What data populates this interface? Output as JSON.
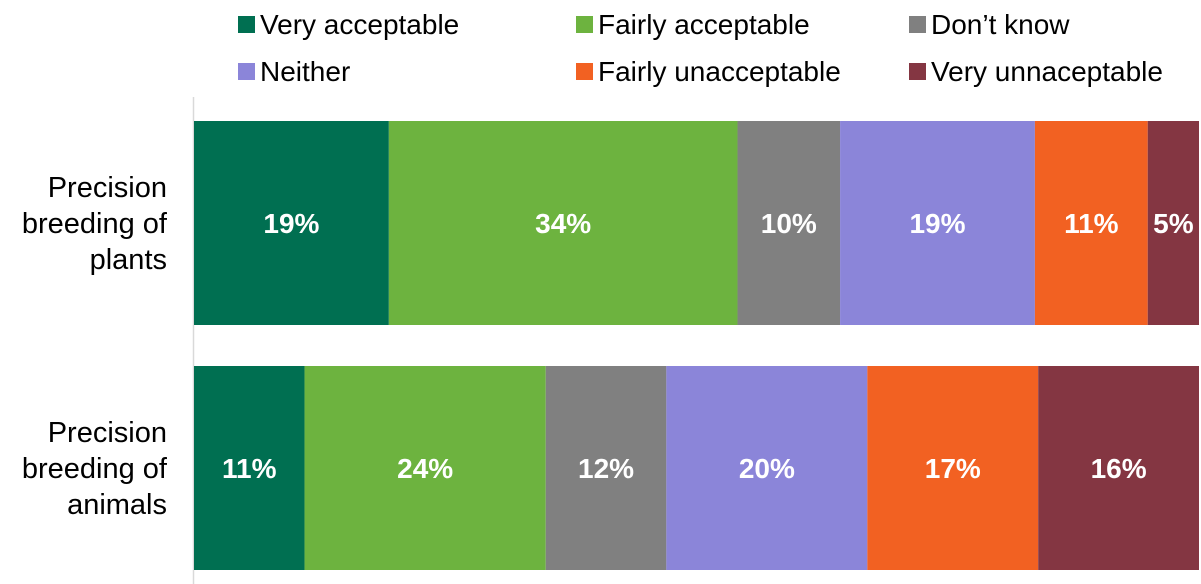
{
  "chart_data": {
    "type": "bar",
    "orientation": "horizontal",
    "stacked": true,
    "percent_stacked": true,
    "categories": [
      [
        "Precision",
        "breeding of",
        "plants"
      ],
      [
        "Precision",
        "breeding of",
        "animals"
      ]
    ],
    "series": [
      {
        "name": "Very acceptable",
        "color": "#006f51",
        "values": [
          19,
          11
        ]
      },
      {
        "name": "Fairly acceptable",
        "color": "#6db33f",
        "values": [
          34,
          24
        ]
      },
      {
        "name": "Don’t know",
        "color": "#808080",
        "values": [
          10,
          12
        ]
      },
      {
        "name": "Neither",
        "color": "#8b85d9",
        "values": [
          19,
          20
        ]
      },
      {
        "name": "Fairly unacceptable",
        "color": "#f26122",
        "values": [
          11,
          17
        ]
      },
      {
        "name": "Very unnaceptable",
        "color": "#843642",
        "values": [
          5,
          16
        ]
      }
    ],
    "value_suffix": "%",
    "legend": {
      "placement": "top",
      "order": [
        0,
        1,
        2,
        3,
        4,
        5
      ]
    },
    "grid": false
  }
}
